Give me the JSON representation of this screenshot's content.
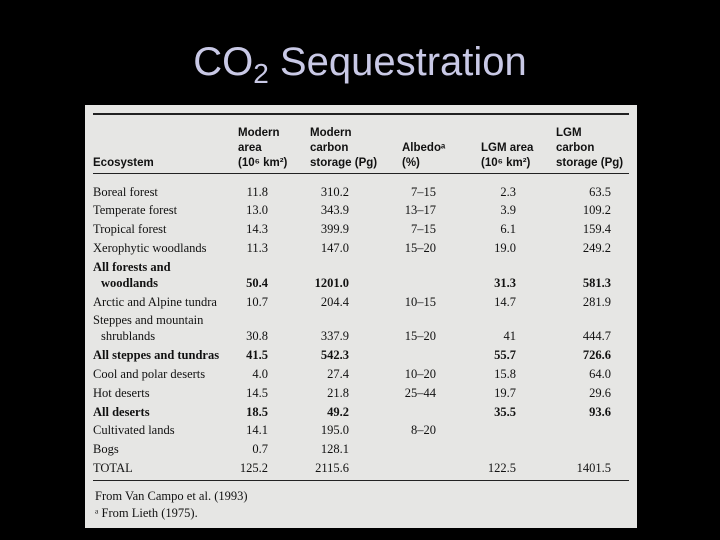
{
  "title": {
    "main": "CO",
    "subscript": "2",
    "rest": "Sequestration"
  },
  "table": {
    "headers": [
      [
        "Ecosystem"
      ],
      [
        "Modern",
        "area",
        "(10⁶ km²)"
      ],
      [
        "Modern",
        "carbon",
        "storage (Pg)"
      ],
      [
        "Albedoᵃ",
        "(%)"
      ],
      [
        "LGM area",
        "(10⁶ km²)"
      ],
      [
        "LGM",
        "carbon",
        "storage (Pg)"
      ]
    ],
    "rows": [
      {
        "name": [
          "Boreal forest"
        ],
        "cells": [
          "11.8",
          "310.2",
          "7–15",
          "2.3",
          "63.5"
        ]
      },
      {
        "name": [
          "Temperate forest"
        ],
        "cells": [
          "13.0",
          "343.9",
          "13–17",
          "3.9",
          "109.2"
        ]
      },
      {
        "name": [
          "Tropical forest"
        ],
        "cells": [
          "14.3",
          "399.9",
          "7–15",
          "6.1",
          "159.4"
        ]
      },
      {
        "name": [
          "Xerophytic woodlands"
        ],
        "cells": [
          "11.3",
          "147.0",
          "15–20",
          "19.0",
          "249.2"
        ]
      },
      {
        "name": [
          "All forests and",
          "woodlands"
        ],
        "cells": [
          "50.4",
          "1201.0",
          null,
          "31.3",
          "581.3"
        ],
        "summary": true
      },
      {
        "name": [
          "Arctic and Alpine tundra"
        ],
        "cells": [
          "10.7",
          "204.4",
          "10–15",
          "14.7",
          "281.9"
        ]
      },
      {
        "name": [
          "Steppes and mountain",
          "shrublands"
        ],
        "cells": [
          "30.8",
          "337.9",
          "15–20",
          "41",
          "444.7"
        ]
      },
      {
        "name": [
          "All steppes and tundras"
        ],
        "cells": [
          "41.5",
          "542.3",
          null,
          "55.7",
          "726.6"
        ],
        "summary": true
      },
      {
        "name": [
          "Cool and polar deserts"
        ],
        "cells": [
          "4.0",
          "27.4",
          "10–20",
          "15.8",
          "64.0"
        ]
      },
      {
        "name": [
          "Hot deserts"
        ],
        "cells": [
          "14.5",
          "21.8",
          "25–44",
          "19.7",
          "29.6"
        ]
      },
      {
        "name": [
          "All deserts"
        ],
        "cells": [
          "18.5",
          "49.2",
          null,
          "35.5",
          "93.6"
        ],
        "summary": true
      },
      {
        "name": [
          "Cultivated lands"
        ],
        "cells": [
          "14.1",
          "195.0",
          "8–20",
          null,
          null
        ]
      },
      {
        "name": [
          "Bogs"
        ],
        "cells": [
          "0.7",
          "128.1",
          null,
          null,
          null
        ]
      },
      {
        "name": [
          "TOTAL"
        ],
        "cells": [
          "125.2",
          "2115.6",
          null,
          "122.5",
          "1401.5"
        ]
      }
    ],
    "footnotes": [
      "From Van Campo et al. (1993)",
      "ᵃ From Lieth (1975)."
    ]
  }
}
